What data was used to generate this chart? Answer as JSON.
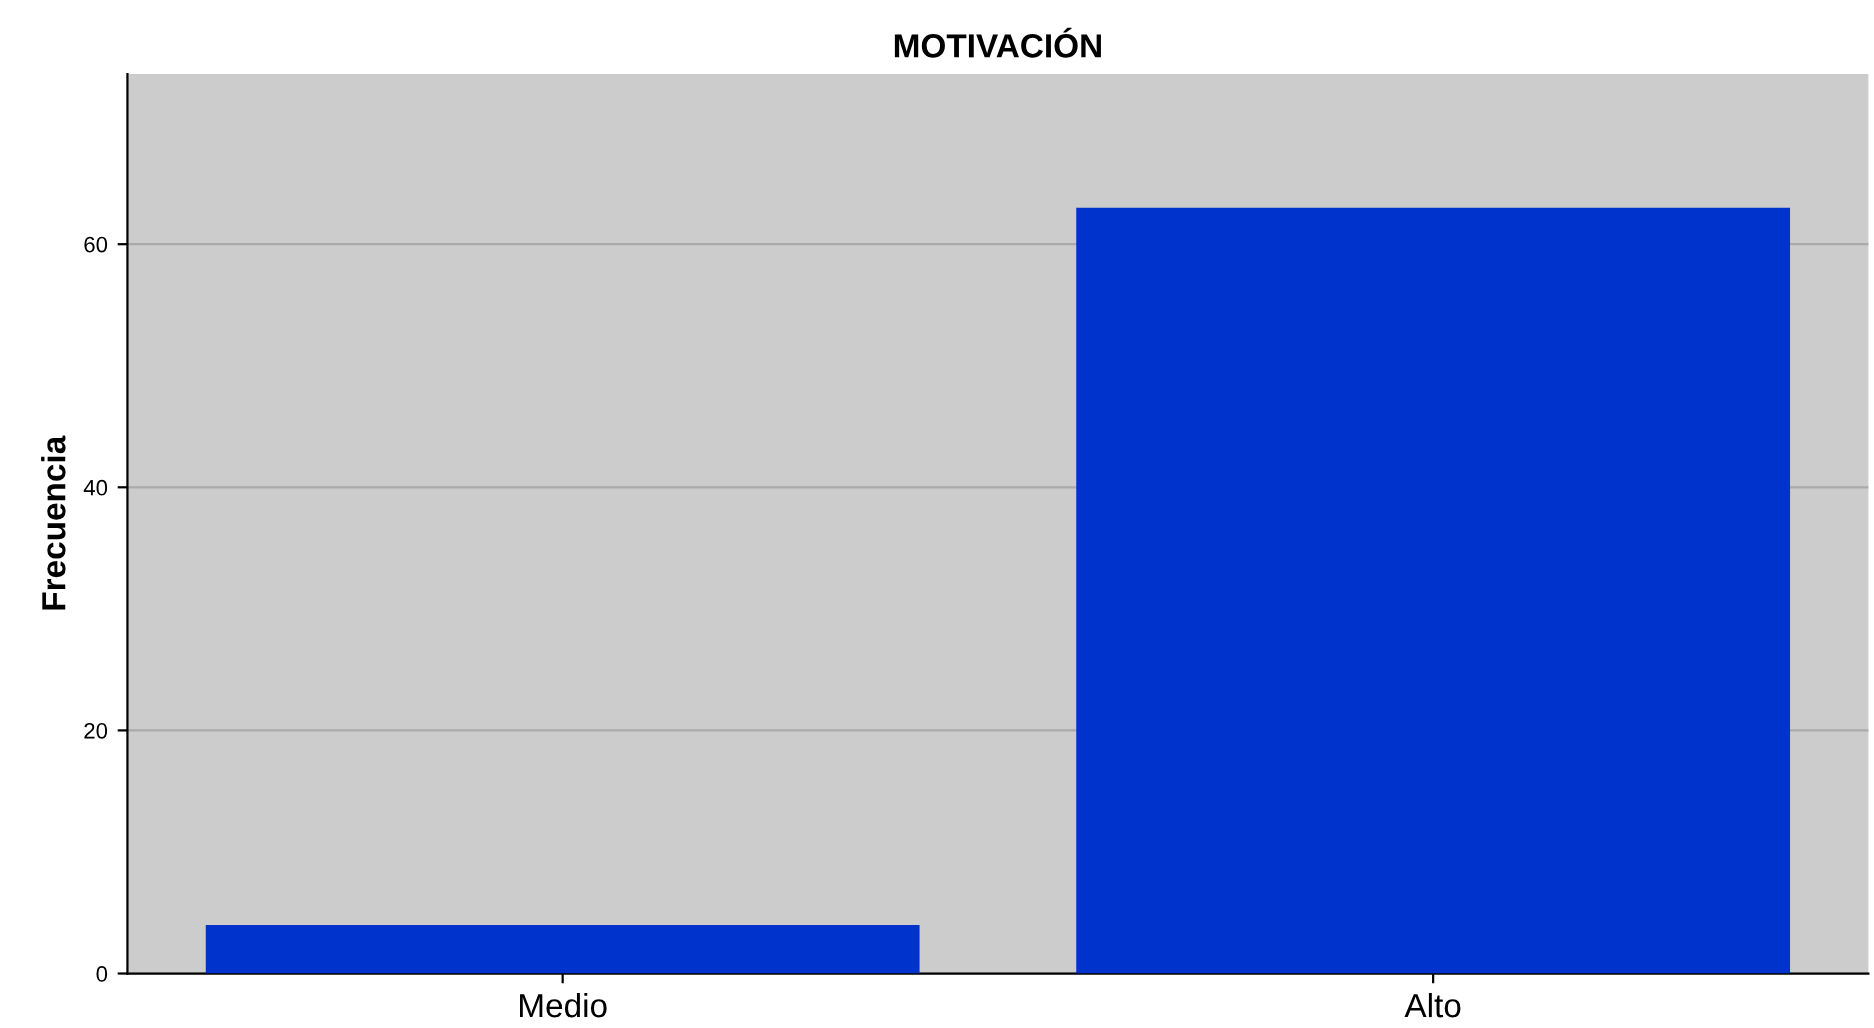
{
  "chart_data": {
    "type": "bar",
    "title": "MOTIVACIÓN",
    "ylabel": "Frecuencia",
    "categories": [
      "Medio",
      "Alto"
    ],
    "values": [
      4,
      63
    ],
    "color": "#0033cc",
    "ylim": [
      0,
      74
    ],
    "yticks": [
      0,
      20,
      40,
      60
    ],
    "grid": "y"
  }
}
